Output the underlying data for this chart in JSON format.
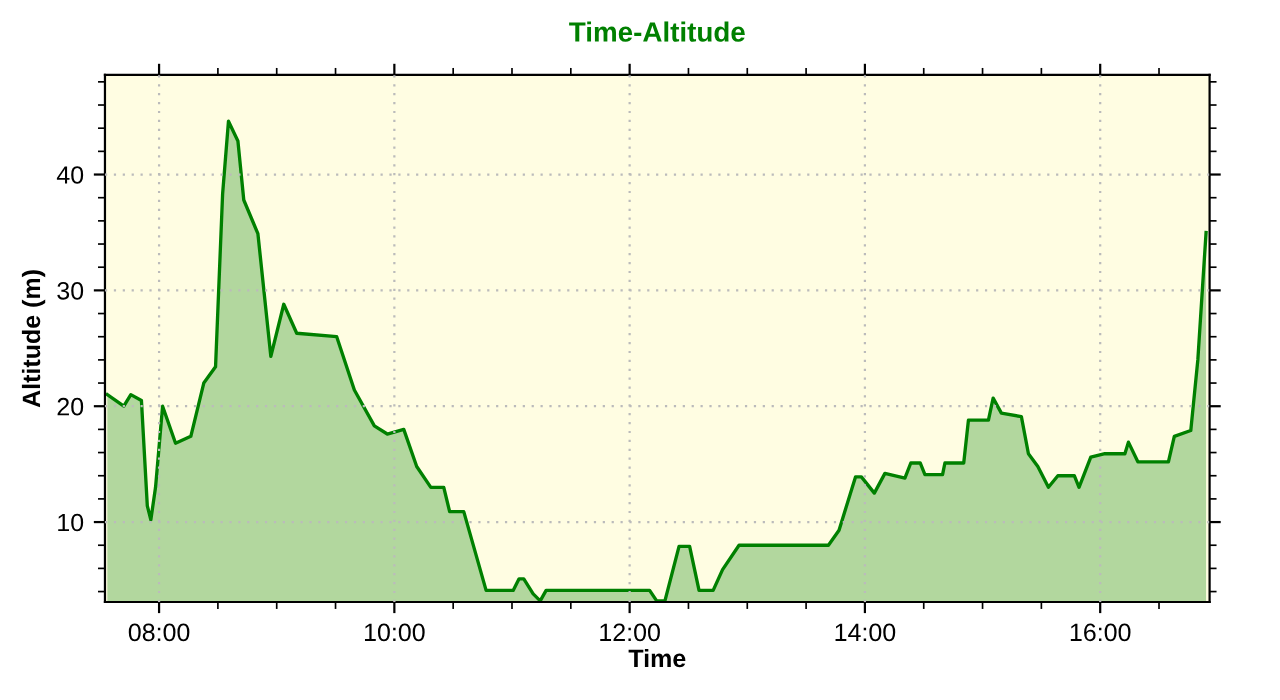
{
  "chart_data": {
    "type": "area",
    "title": "Time-Altitude",
    "xlabel": "Time",
    "ylabel": "Altitude (m)",
    "xlim": [
      7.54,
      16.93
    ],
    "ylim": [
      3.1,
      48.6
    ],
    "xticks": [
      {
        "value": 8,
        "label": "08:00"
      },
      {
        "value": 10,
        "label": "10:00"
      },
      {
        "value": 12,
        "label": "12:00"
      },
      {
        "value": 14,
        "label": "14:00"
      },
      {
        "value": 16,
        "label": "16:00"
      }
    ],
    "yticks": [
      10,
      20,
      30,
      40
    ],
    "grid": true,
    "series": [
      {
        "color": "#008000",
        "x": [
          7.56,
          7.7,
          7.76,
          7.85,
          7.9,
          7.93,
          7.97,
          8.03,
          8.14,
          8.27,
          8.38,
          8.48,
          8.54,
          8.59,
          8.67,
          8.72,
          8.84,
          8.95,
          9.06,
          9.17,
          9.51,
          9.66,
          9.83,
          9.94,
          10.08,
          10.19,
          10.31,
          10.42,
          10.47,
          10.59,
          10.78,
          11.01,
          11.06,
          11.1,
          11.18,
          11.24,
          11.29,
          12.17,
          12.23,
          12.3,
          12.42,
          12.51,
          12.59,
          12.71,
          12.79,
          12.93,
          13.69,
          13.78,
          13.92,
          13.97,
          14.08,
          14.17,
          14.34,
          14.39,
          14.47,
          14.51,
          14.66,
          14.68,
          14.84,
          14.88,
          15.05,
          15.09,
          15.16,
          15.33,
          15.39,
          15.47,
          15.56,
          15.64,
          15.78,
          15.82,
          15.92,
          16.04,
          16.21,
          16.24,
          16.32,
          16.58,
          16.63,
          16.77,
          16.83,
          16.87,
          16.9
        ],
        "values": [
          21,
          20,
          21,
          20.5,
          11.4,
          10.2,
          13,
          20,
          16.8,
          17.4,
          22,
          23.4,
          38.3,
          44.6,
          42.9,
          37.8,
          34.9,
          24.3,
          28.8,
          26.3,
          26,
          21.4,
          18.3,
          17.6,
          18,
          14.8,
          13,
          13,
          10.9,
          10.9,
          4.1,
          4.1,
          5.1,
          5.1,
          3.8,
          3.2,
          4.1,
          4.1,
          3.2,
          3.2,
          7.9,
          7.9,
          4.1,
          4.1,
          5.9,
          8,
          8,
          9.3,
          13.9,
          13.9,
          12.5,
          14.2,
          13.8,
          15.1,
          15.1,
          14.1,
          14.1,
          15.1,
          15.1,
          18.8,
          18.8,
          20.7,
          19.4,
          19.1,
          15.9,
          14.8,
          13,
          14,
          14,
          13,
          15.6,
          15.9,
          15.9,
          16.9,
          15.2,
          15.2,
          17.4,
          17.9,
          24,
          30.3,
          35
        ]
      }
    ]
  }
}
